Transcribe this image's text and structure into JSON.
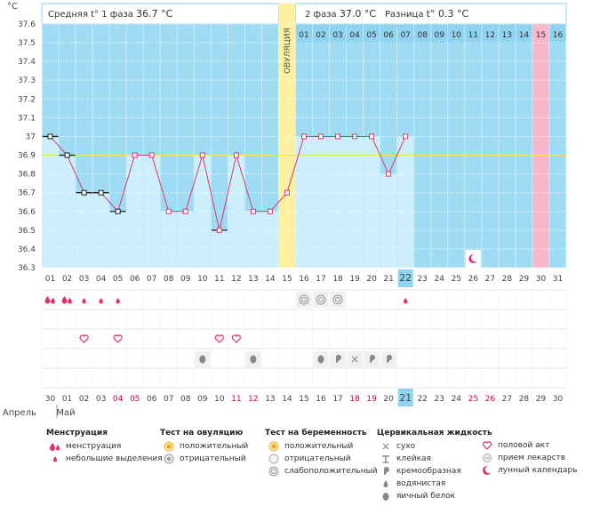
{
  "unit_label": "°C",
  "header": {
    "phase1_label": "Средняя t° 1 фаза",
    "phase1_value": "36.7 °C",
    "phase2_label": "2 фаза",
    "phase2_value": "37.0 °C",
    "diff_label": "Разница",
    "diff_value": "t° 0.3 °C"
  },
  "ovulation_label": "ОВУЛЯЦИЯ",
  "colors": {
    "plot_bg": "#9fdcf3",
    "bar": "#cdeefb",
    "line": "#d63a6c",
    "ovulation": "#fdf0a0",
    "highlight_pink": "#f9b8c9",
    "day_highlight": "#8fd3f0",
    "red_text": "#d6003a"
  },
  "chart_data": {
    "type": "line",
    "y_axis_ticks": [
      "36.3",
      "36.4",
      "36.5",
      "36.6",
      "36.7",
      "36.8",
      "36.9",
      "37",
      "37.1",
      "37.2",
      "37.3",
      "37.4",
      "37.5",
      "37.6"
    ],
    "ylim": [
      36.3,
      37.6
    ],
    "cycle_days": [
      "01",
      "02",
      "03",
      "04",
      "05",
      "06",
      "07",
      "08",
      "09",
      "10",
      "11",
      "12",
      "13",
      "14",
      "15",
      "16",
      "17",
      "18",
      "19",
      "20",
      "21",
      "22",
      "23",
      "24",
      "25",
      "26",
      "27",
      "28",
      "29",
      "30",
      "31"
    ],
    "temperatures": [
      37.0,
      36.9,
      36.7,
      36.7,
      36.6,
      36.9,
      36.9,
      36.6,
      36.6,
      36.9,
      36.5,
      36.9,
      36.6,
      36.6,
      36.7,
      37.0,
      37.0,
      37.0,
      37.0,
      37.0,
      36.8,
      37.0,
      null,
      null,
      null,
      null,
      null,
      null,
      null,
      null,
      null
    ],
    "coverline": 36.9,
    "ovulation_day": "15",
    "phase2_days": [
      "01",
      "02",
      "03",
      "04",
      "05",
      "06",
      "07",
      "08",
      "09",
      "10",
      "11",
      "12",
      "13",
      "14",
      "15",
      "16"
    ],
    "phase2_highlight_day": "15",
    "current_cycle_day": "22",
    "calendar_dates": [
      "30",
      "01",
      "02",
      "03",
      "04",
      "05",
      "06",
      "07",
      "08",
      "09",
      "10",
      "11",
      "12",
      "13",
      "14",
      "15",
      "16",
      "17",
      "18",
      "19",
      "20",
      "21",
      "22",
      "23",
      "24",
      "25",
      "26",
      "27",
      "28",
      "29",
      "30"
    ],
    "calendar_red_dates_idx": [
      4,
      5,
      11,
      12,
      18,
      19,
      25,
      26
    ],
    "calendar_current_idx": 21,
    "month_labels": [
      "Апрель",
      "Май"
    ]
  },
  "legend": {
    "menstruation": {
      "title": "Менструация",
      "items": [
        "менструация",
        "небольшие выделения"
      ]
    },
    "ovulation_test": {
      "title": "Тест на овуляцию",
      "items": [
        "положительный",
        "отрицательный"
      ]
    },
    "pregnancy_test": {
      "title": "Тест на беременность",
      "items": [
        "положительный",
        "отрицательный",
        "слабоположительный"
      ]
    },
    "cervical": {
      "title": "Цервикальная жидкость",
      "items": [
        "сухо",
        "клейкая",
        "кремообразная",
        "водянистая",
        "яичный белок"
      ]
    },
    "other": {
      "items": [
        "половой акт",
        "прием лекарств",
        "лунный календарь"
      ]
    }
  }
}
